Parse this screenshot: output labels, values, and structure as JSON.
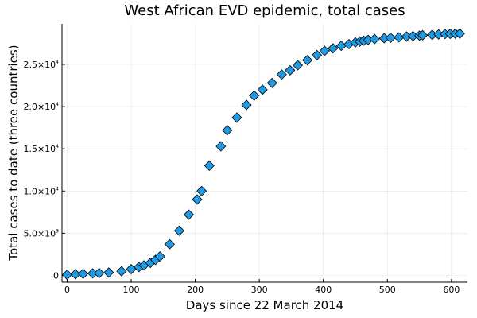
{
  "chart_data": {
    "type": "scatter",
    "title": "West African EVD epidemic, total cases",
    "xlabel": "Days since 22 March 2014",
    "ylabel": "Total cases to date (three countries)",
    "xlim": [
      -8,
      625
    ],
    "ylim": [
      -800,
      29800
    ],
    "x_ticks": [
      {
        "value": 0,
        "label": "0"
      },
      {
        "value": 100,
        "label": "100"
      },
      {
        "value": 200,
        "label": "200"
      },
      {
        "value": 300,
        "label": "300"
      },
      {
        "value": 400,
        "label": "400"
      },
      {
        "value": 500,
        "label": "500"
      },
      {
        "value": 600,
        "label": "600"
      }
    ],
    "y_ticks": [
      {
        "value": 0,
        "mantissa": "0",
        "exp": ""
      },
      {
        "value": 5000,
        "mantissa": "5.0×10",
        "exp": "3"
      },
      {
        "value": 10000,
        "mantissa": "1.0×10",
        "exp": "4"
      },
      {
        "value": 15000,
        "mantissa": "1.5×10",
        "exp": "4"
      },
      {
        "value": 20000,
        "mantissa": "2.0×10",
        "exp": "4"
      },
      {
        "value": 25000,
        "mantissa": "2.5×10",
        "exp": "4"
      }
    ],
    "grid": true,
    "legend": "none",
    "marker_color": "#1f9ae3",
    "series": [
      {
        "x": [
          0,
          13,
          25,
          40,
          50,
          65,
          85,
          100,
          112,
          120,
          130,
          138,
          145,
          160,
          175,
          190,
          203,
          210,
          222,
          240,
          250,
          265,
          280,
          292,
          305,
          320,
          335,
          348,
          360,
          375,
          390,
          402,
          415,
          428,
          440,
          450,
          457,
          463,
          470,
          480,
          495,
          505,
          518,
          530,
          540,
          550,
          555,
          570,
          580,
          590,
          598,
          606,
          613
        ],
        "y": [
          80,
          150,
          200,
          250,
          280,
          350,
          500,
          750,
          1000,
          1200,
          1500,
          1850,
          2250,
          3700,
          5300,
          7200,
          9000,
          10000,
          13000,
          15300,
          17200,
          18700,
          20200,
          21300,
          22000,
          22800,
          23800,
          24300,
          24900,
          25500,
          26100,
          26600,
          26900,
          27200,
          27400,
          27600,
          27700,
          27800,
          27900,
          28000,
          28100,
          28150,
          28200,
          28300,
          28350,
          28400,
          28450,
          28500,
          28550,
          28600,
          28620,
          28640,
          28650
        ]
      }
    ]
  }
}
